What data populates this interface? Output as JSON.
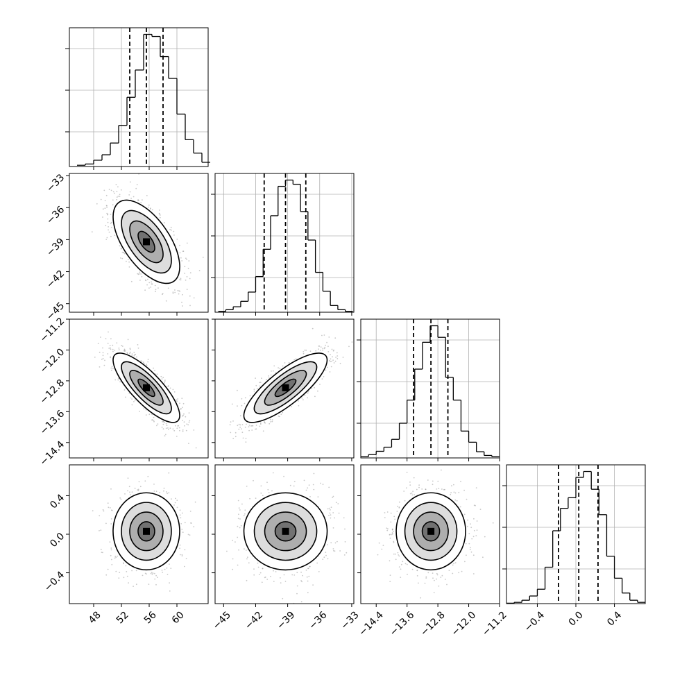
{
  "chart_data": {
    "type": "corner",
    "parameters": 4,
    "grid": true,
    "quantile_lines": "dashed",
    "density_fill": "gray",
    "contour_color": "#000000",
    "scatter_color": "#9a9a9a",
    "axes": [
      {
        "index": 0,
        "range": [
          44.5,
          64.5
        ],
        "ticks": [
          48,
          52,
          56,
          60
        ],
        "tick_labels": [
          "48",
          "52",
          "56",
          "60"
        ]
      },
      {
        "index": 1,
        "range": [
          -45.8,
          -32.8
        ],
        "ticks": [
          -45,
          -42,
          -39,
          -36,
          -33
        ],
        "tick_labels": [
          "−45",
          "−42",
          "−39",
          "−36",
          "−33"
        ]
      },
      {
        "index": 2,
        "range": [
          -14.8,
          -11.2
        ],
        "ticks": [
          -14.4,
          -13.6,
          -12.8,
          -12.0,
          -11.2
        ],
        "tick_labels": [
          "−14.4",
          "−13.6",
          "−12.8",
          "−12.0",
          "−11.2"
        ]
      },
      {
        "index": 3,
        "range": [
          -0.72,
          0.72
        ],
        "ticks": [
          -0.4,
          0.0,
          0.4
        ],
        "tick_labels": [
          "−0.4",
          "0.0",
          "0.4"
        ]
      }
    ],
    "marginals": [
      {
        "param": 0,
        "quantiles": [
          53.2,
          55.6,
          58.0
        ],
        "bins": [
          45.6,
          46.8,
          48.0,
          49.2,
          50.4,
          51.6,
          52.8,
          54.0,
          55.2,
          56.4,
          57.6,
          58.8,
          60.0,
          61.2,
          62.4,
          63.6
        ],
        "counts": [
          0.3,
          0.6,
          1.5,
          2.8,
          5.6,
          9.8,
          16.5,
          23.0,
          31.5,
          31.0,
          26.2,
          21.0,
          12.5,
          6.4,
          3.2,
          1.0
        ]
      },
      {
        "param": 1,
        "quantiles": [
          -41.2,
          -39.2,
          -37.3
        ],
        "bins": [
          -45.5,
          -44.8,
          -44.1,
          -43.4,
          -42.7,
          -42.0,
          -41.3,
          -40.6,
          -39.9,
          -39.2,
          -38.5,
          -37.8,
          -37.1,
          -36.4,
          -35.7,
          -35.0,
          -34.3,
          -33.6
        ],
        "counts": [
          0.2,
          0.6,
          1.3,
          2.6,
          4.8,
          8.5,
          15.0,
          23.0,
          30.0,
          31.5,
          30.5,
          24.0,
          17.2,
          9.5,
          5.0,
          1.6,
          0.6,
          0.2
        ]
      },
      {
        "param": 2,
        "quantiles": [
          -13.43,
          -12.98,
          -12.54
        ],
        "bins": [
          -14.8,
          -14.6,
          -14.4,
          -14.2,
          -14.0,
          -13.8,
          -13.6,
          -13.4,
          -13.2,
          -13.0,
          -12.8,
          -12.6,
          -12.4,
          -12.2,
          -12.0,
          -11.8,
          -11.6,
          -11.4
        ],
        "counts": [
          0.3,
          0.8,
          1.6,
          2.6,
          4.5,
          8.4,
          14.0,
          21.5,
          28.0,
          32.0,
          29.2,
          19.5,
          14.0,
          6.5,
          3.8,
          1.5,
          0.6,
          0.3
        ]
      },
      {
        "param": 3,
        "quantiles": [
          -0.18,
          0.03,
          0.23
        ],
        "bins": [
          -0.72,
          -0.64,
          -0.56,
          -0.48,
          -0.4,
          -0.32,
          -0.24,
          -0.16,
          -0.08,
          0.0,
          0.08,
          0.16,
          0.24,
          0.32,
          0.4,
          0.48,
          0.56,
          0.64
        ],
        "counts": [
          0.1,
          0.3,
          0.8,
          1.8,
          3.4,
          8.6,
          17.2,
          22.5,
          25.0,
          29.8,
          31.2,
          27.0,
          21.0,
          11.2,
          6.0,
          2.5,
          0.8,
          0.3
        ]
      }
    ],
    "pairs": [
      {
        "x_param": 0,
        "y_param": 1,
        "mean": [
          55.6,
          -39.2
        ],
        "std": [
          2.4,
          1.95
        ],
        "corr": -0.6
      },
      {
        "x_param": 0,
        "y_param": 2,
        "mean": [
          55.6,
          -12.98
        ],
        "std": [
          2.4,
          0.45
        ],
        "corr": -0.8
      },
      {
        "x_param": 1,
        "y_param": 2,
        "mean": [
          -39.2,
          -12.98
        ],
        "std": [
          1.95,
          0.45
        ],
        "corr": 0.8
      },
      {
        "x_param": 0,
        "y_param": 3,
        "mean": [
          55.6,
          0.03
        ],
        "std": [
          2.4,
          0.2
        ],
        "corr": 0.0
      },
      {
        "x_param": 1,
        "y_param": 3,
        "mean": [
          -39.2,
          0.03
        ],
        "std": [
          1.95,
          0.2
        ],
        "corr": 0.0
      },
      {
        "x_param": 2,
        "y_param": 3,
        "mean": [
          -12.98,
          0.03
        ],
        "std": [
          0.45,
          0.2
        ],
        "corr": 0.0
      }
    ]
  }
}
